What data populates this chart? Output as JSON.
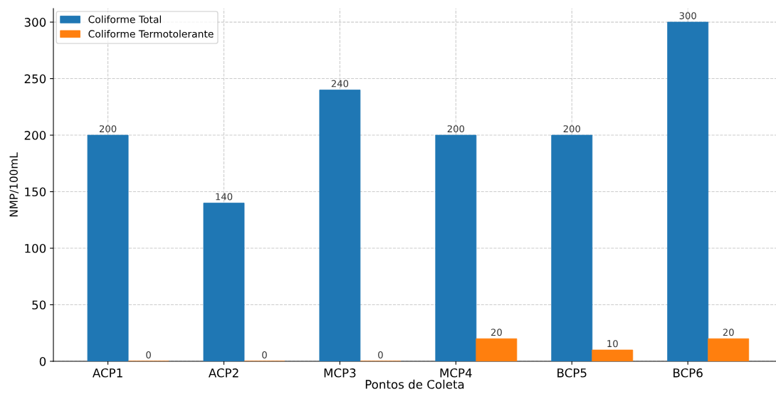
{
  "chart_data": {
    "type": "bar",
    "xlabel": "Pontos de Coleta",
    "ylabel": "NMP/100mL",
    "categories": [
      "ACP1",
      "ACP2",
      "MCP3",
      "MCP4",
      "BCP5",
      "BCP6"
    ],
    "series": [
      {
        "name": "Coliforme Total",
        "color": "#1f77b4",
        "values": [
          200,
          140,
          240,
          200,
          200,
          300
        ],
        "value_labels": [
          "200",
          "140",
          "240",
          "200",
          "200",
          "300"
        ]
      },
      {
        "name": "Coliforme Termotolerante",
        "color": "#ff7f0e",
        "values": [
          0,
          0,
          0,
          20,
          10,
          20
        ],
        "value_labels": [
          "0",
          "0",
          "0",
          "20",
          "10",
          "20"
        ]
      }
    ],
    "ylim": [
      0,
      312
    ],
    "yticks": [
      0,
      50,
      100,
      150,
      200,
      250,
      300
    ],
    "grid": true,
    "legend": "top left"
  }
}
